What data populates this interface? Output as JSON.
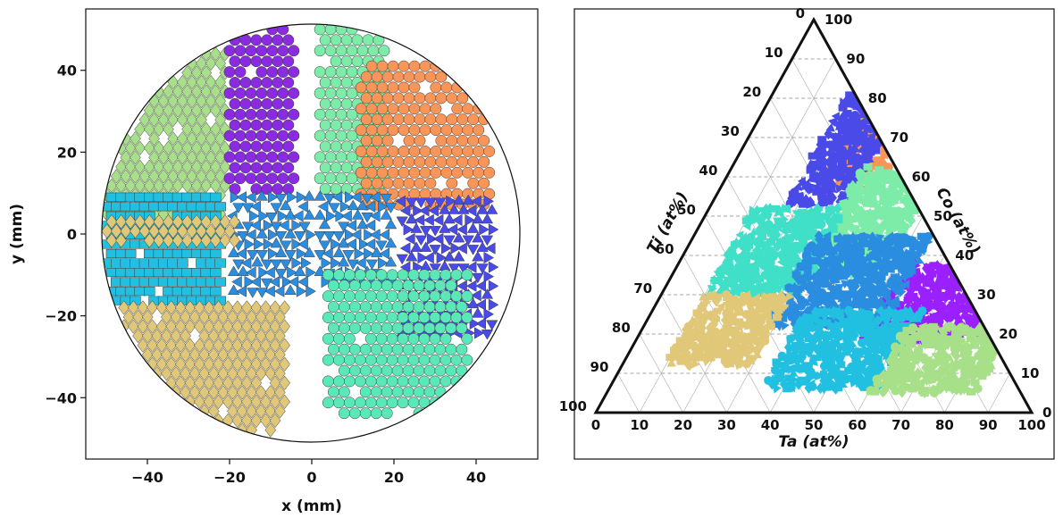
{
  "chart_data": [
    {
      "type": "scatter",
      "subtype": "wafer-map",
      "xlabel": "x (mm)",
      "ylabel": "y (mm)",
      "xlim": [
        -55,
        55
      ],
      "ylim": [
        -55,
        55
      ],
      "xticks": [
        -40,
        -20,
        0,
        20,
        40
      ],
      "yticks": [
        -40,
        -20,
        0,
        20,
        40
      ],
      "xtick_labels": [
        "−40",
        "−20",
        "0",
        "20",
        "40"
      ],
      "ytick_labels": [
        "−40",
        "−20",
        "0",
        "20",
        "40"
      ],
      "wafer_radius": 51,
      "grid": false,
      "regions": [
        {
          "cluster": "light-green diamonds",
          "marker": "diamond",
          "color": "#a8e08a",
          "x": [
            -51,
            -21
          ],
          "y": [
            4,
            44
          ]
        },
        {
          "cluster": "purple circles",
          "marker": "circle",
          "color": "#8a2be2",
          "x": [
            -20,
            -4
          ],
          "y": [
            10,
            50
          ]
        },
        {
          "cluster": "mint circles",
          "marker": "circle",
          "color": "#7deca8",
          "x": [
            2,
            18
          ],
          "y": [
            10,
            50
          ]
        },
        {
          "cluster": "orange circles",
          "marker": "circle",
          "color": "#f8965a",
          "x": [
            12,
            44
          ],
          "y": [
            5,
            41
          ]
        },
        {
          "cluster": "cyan squares",
          "marker": "square",
          "color": "#22c0e0",
          "x": [
            -51,
            -22
          ],
          "y": [
            -17,
            9
          ]
        },
        {
          "cluster": "blue triangles",
          "marker": "triangle",
          "color": "#2a8de0",
          "x": [
            -19,
            0
          ],
          "y": [
            -16,
            9
          ]
        },
        {
          "cluster": "blue triangles",
          "marker": "triangle",
          "color": "#2a8de0",
          "x": [
            2,
            20
          ],
          "y": [
            -12,
            9
          ]
        },
        {
          "cluster": "indigo triangles",
          "marker": "triangle",
          "color": "#4a4ae8",
          "x": [
            22,
            44
          ],
          "y": [
            -26,
            8
          ]
        },
        {
          "cluster": "sand diamonds",
          "marker": "diamond",
          "color": "#e0c878",
          "x": [
            -48,
            -6
          ],
          "y": [
            -50,
            -18
          ]
        },
        {
          "cluster": "sand diamonds row",
          "marker": "diamond",
          "color": "#e0c878",
          "x": [
            -51,
            -18
          ],
          "y": [
            -3,
            3
          ]
        },
        {
          "cluster": "aquamarine mix",
          "marker": "circle",
          "color": "#5ae8b8",
          "x": [
            4,
            38
          ],
          "y": [
            -44,
            -10
          ]
        }
      ]
    },
    {
      "type": "scatter",
      "subtype": "ternary",
      "axes": {
        "bottom": {
          "label": "Ta (at%)",
          "ticks": [
            "0",
            "10",
            "20",
            "30",
            "40",
            "50",
            "60",
            "70",
            "80",
            "90",
            "100"
          ]
        },
        "right": {
          "label": "Co (at%)",
          "ticks": [
            "0",
            "10",
            "20",
            "30",
            "40",
            "50",
            "60",
            "70",
            "80",
            "90",
            "100"
          ]
        },
        "left": {
          "label": "Ti (at%)",
          "ticks": [
            "0",
            "10",
            "20",
            "30",
            "40",
            "50",
            "60",
            "70",
            "80",
            "90",
            "100"
          ]
        }
      },
      "grid": "dashed",
      "regions": [
        {
          "cluster": "purple",
          "color": "#9a20ff",
          "ta": [
            52,
            78
          ],
          "co": [
            18,
            38
          ]
        },
        {
          "cluster": "orange",
          "color": "#f8965a",
          "ta": [
            22,
            36
          ],
          "co": [
            57,
            80
          ]
        },
        {
          "cluster": "indigo",
          "color": "#4a4ae8",
          "ta": [
            17,
            31
          ],
          "co": [
            53,
            82
          ]
        },
        {
          "cluster": "mint",
          "color": "#7deca8",
          "ta": [
            30,
            48
          ],
          "co": [
            35,
            63
          ]
        },
        {
          "cluster": "turquoise",
          "color": "#40e0c8",
          "ta": [
            10,
            32
          ],
          "co": [
            30,
            52
          ]
        },
        {
          "cluster": "blue",
          "color": "#2a8de0",
          "ta": [
            28,
            55
          ],
          "co": [
            22,
            45
          ]
        },
        {
          "cluster": "sand",
          "color": "#e0c878",
          "ta": [
            10,
            30
          ],
          "co": [
            12,
            30
          ]
        },
        {
          "cluster": "cyan",
          "color": "#22c0e0",
          "ta": [
            35,
            62
          ],
          "co": [
            6,
            26
          ]
        },
        {
          "cluster": "light-green",
          "color": "#a8e08a",
          "ta": [
            60,
            85
          ],
          "co": [
            5,
            22
          ]
        }
      ]
    }
  ]
}
